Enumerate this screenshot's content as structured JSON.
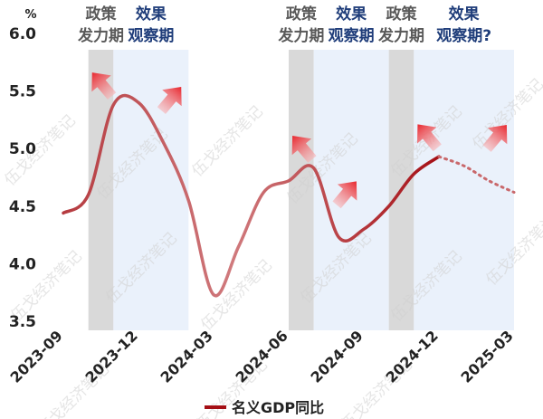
{
  "chart_data": {
    "type": "line",
    "yunit": "%",
    "ylim": [
      3.5,
      6.0
    ],
    "yticks": [
      "3.5",
      "4.0",
      "4.5",
      "5.0",
      "5.5",
      "6.0"
    ],
    "xlim": [
      "2023-09",
      "2025-03"
    ],
    "xticks": [
      "2023-09",
      "2023-12",
      "2024-03",
      "2024-06",
      "2024-09",
      "2024-12",
      "2025-03"
    ],
    "series": [
      {
        "name": "名义GDP同比",
        "color": "#a50f15",
        "points": [
          [
            "2023-09",
            4.44
          ],
          [
            "2023-10",
            4.6
          ],
          [
            "2023-11",
            5.38
          ],
          [
            "2023-12",
            5.4
          ],
          [
            "2024-01",
            5.05
          ],
          [
            "2024-02",
            4.55
          ],
          [
            "2024-03",
            3.73
          ],
          [
            "2024-04",
            4.15
          ],
          [
            "2024-05",
            4.62
          ],
          [
            "2024-06",
            4.72
          ],
          [
            "2024-07",
            4.83
          ],
          [
            "2024-08",
            4.23
          ],
          [
            "2024-09",
            4.3
          ],
          [
            "2024-10",
            4.5
          ],
          [
            "2024-11",
            4.78
          ],
          [
            "2024-12",
            4.93
          ],
          [
            "2025-01",
            4.85
          ],
          [
            "2025-02",
            4.72
          ],
          [
            "2025-03",
            4.62
          ]
        ],
        "forecast_from": "2024-12"
      }
    ],
    "bands": [
      {
        "label": [
          "政策",
          "发力期"
        ],
        "from": "2023-10",
        "to": "2023-11",
        "color": "#d9d9d9"
      },
      {
        "label": [
          "效果",
          "观察期"
        ],
        "from": "2023-11",
        "to": "2024-02",
        "color": "#eaf1fb"
      },
      {
        "label": [
          "政策",
          "发力期"
        ],
        "from": "2024-06",
        "to": "2024-07",
        "color": "#d9d9d9"
      },
      {
        "label": [
          "效果",
          "观察期"
        ],
        "from": "2024-07",
        "to": "2024-10",
        "color": "#eaf1fb"
      },
      {
        "label": [
          "政策",
          "发力期"
        ],
        "from": "2024-10",
        "to": "2024-11",
        "color": "#d9d9d9"
      },
      {
        "label": [
          "效果",
          "观察期?"
        ],
        "from": "2024-11",
        "to": "2025-03",
        "color": "#eaf1fb"
      }
    ],
    "arrows": [
      {
        "dir": "up",
        "at": "2023-11"
      },
      {
        "dir": "down",
        "at": "2024-01"
      },
      {
        "dir": "up",
        "at": "2024-07"
      },
      {
        "dir": "down",
        "at": "2024-08"
      },
      {
        "dir": "up",
        "at": "2024-12"
      },
      {
        "dir": "down",
        "at": "2025-02"
      }
    ],
    "legend": {
      "position": "bottom",
      "label": "名义GDP同比"
    },
    "watermark": "伍戈经济笔记",
    "grid": false
  },
  "colors": {
    "line_early": "#a50f15",
    "line_fade": "#c9686b",
    "arrow": "#e8262d",
    "band_label_policy": "#595959",
    "band_label_effect": "#1f3d7a",
    "axis_text": "#222222"
  }
}
